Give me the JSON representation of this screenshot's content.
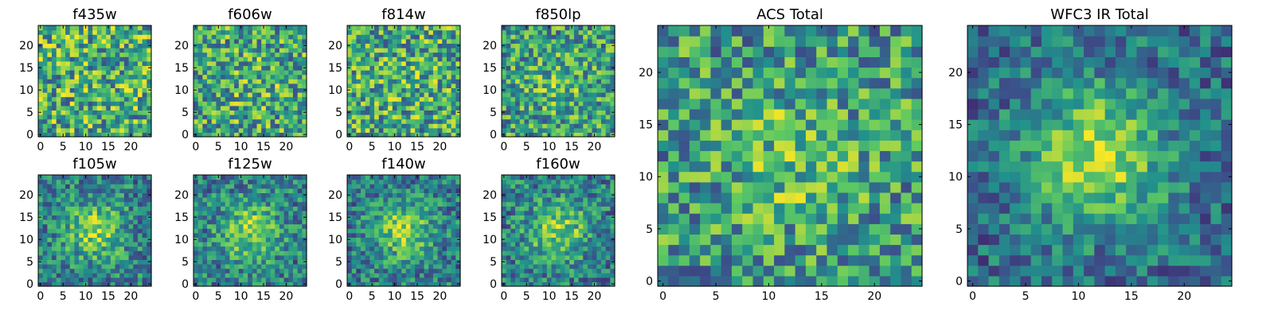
{
  "figure": {
    "title": ""
  },
  "chart_data": [
    {
      "type": "heatmap",
      "title": "f435w",
      "grid": [
        25,
        25
      ],
      "xlim": [
        0,
        24
      ],
      "ylim": [
        0,
        24
      ],
      "xticks": [
        0,
        5,
        10,
        15,
        20
      ],
      "yticks": [
        0,
        5,
        10,
        15,
        20
      ],
      "blob_strength": 0.0,
      "seed": 11
    },
    {
      "type": "heatmap",
      "title": "f606w",
      "grid": [
        25,
        25
      ],
      "xlim": [
        0,
        24
      ],
      "ylim": [
        0,
        24
      ],
      "xticks": [
        0,
        5,
        10,
        15,
        20
      ],
      "yticks": [
        0,
        5,
        10,
        15,
        20
      ],
      "blob_strength": 0.1,
      "seed": 23
    },
    {
      "type": "heatmap",
      "title": "f814w",
      "grid": [
        25,
        25
      ],
      "xlim": [
        0,
        24
      ],
      "ylim": [
        0,
        24
      ],
      "xticks": [
        0,
        5,
        10,
        15,
        20
      ],
      "yticks": [
        0,
        5,
        10,
        15,
        20
      ],
      "blob_strength": 0.05,
      "seed": 37
    },
    {
      "type": "heatmap",
      "title": "f850lp",
      "grid": [
        25,
        25
      ],
      "xlim": [
        0,
        24
      ],
      "ylim": [
        0,
        24
      ],
      "xticks": [
        0,
        5,
        10,
        15,
        20
      ],
      "yticks": [
        0,
        5,
        10,
        15,
        20
      ],
      "blob_strength": 0.2,
      "seed": 41
    },
    {
      "type": "heatmap",
      "title": "f105w",
      "grid": [
        25,
        25
      ],
      "xlim": [
        0,
        24
      ],
      "ylim": [
        0,
        24
      ],
      "xticks": [
        0,
        5,
        10,
        15,
        20
      ],
      "yticks": [
        0,
        5,
        10,
        15,
        20
      ],
      "blob_strength": 0.55,
      "seed": 53
    },
    {
      "type": "heatmap",
      "title": "f125w",
      "grid": [
        25,
        25
      ],
      "xlim": [
        0,
        24
      ],
      "ylim": [
        0,
        24
      ],
      "xticks": [
        0,
        5,
        10,
        15,
        20
      ],
      "yticks": [
        0,
        5,
        10,
        15,
        20
      ],
      "blob_strength": 0.55,
      "seed": 61
    },
    {
      "type": "heatmap",
      "title": "f140w",
      "grid": [
        25,
        25
      ],
      "xlim": [
        0,
        24
      ],
      "ylim": [
        0,
        24
      ],
      "xticks": [
        0,
        5,
        10,
        15,
        20
      ],
      "yticks": [
        0,
        5,
        10,
        15,
        20
      ],
      "blob_strength": 0.6,
      "seed": 71
    },
    {
      "type": "heatmap",
      "title": "f160w",
      "grid": [
        25,
        25
      ],
      "xlim": [
        0,
        24
      ],
      "ylim": [
        0,
        24
      ],
      "xticks": [
        0,
        5,
        10,
        15,
        20
      ],
      "yticks": [
        0,
        5,
        10,
        15,
        20
      ],
      "blob_strength": 0.55,
      "seed": 83
    },
    {
      "type": "heatmap",
      "title": "ACS Total",
      "grid": [
        25,
        25
      ],
      "xlim": [
        0,
        24
      ],
      "ylim": [
        0,
        24
      ],
      "xticks": [
        0,
        5,
        10,
        15,
        20
      ],
      "yticks": [
        0,
        5,
        10,
        15,
        20
      ],
      "blob_strength": 0.25,
      "seed": 97
    },
    {
      "type": "heatmap",
      "title": "WFC3 IR Total",
      "grid": [
        25,
        25
      ],
      "xlim": [
        0,
        24
      ],
      "ylim": [
        0,
        24
      ],
      "xticks": [
        0,
        5,
        10,
        15,
        20
      ],
      "yticks": [
        0,
        5,
        10,
        15,
        20
      ],
      "blob_strength": 0.75,
      "seed": 101
    }
  ],
  "colormap": {
    "name": "viridis",
    "stops": [
      "#440154",
      "#3b528b",
      "#21918c",
      "#5ec962",
      "#fde725"
    ]
  }
}
